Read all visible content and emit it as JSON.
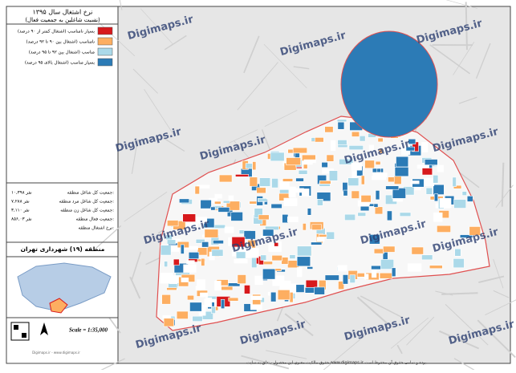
{
  "header": {
    "title": "نرخ اشتغال سال ۱۳۹۵",
    "subtitle": "(نسبت شاغلین به جمعیت فعال)"
  },
  "legend": [
    {
      "label": "بسیار نامناسب (اشتغال کمتر از ۹۰ درصد)",
      "color": "#d7191c"
    },
    {
      "label": "نامناسب (اشتغال بین ۹۰ تا ۹۲ درصد)",
      "color": "#fdae61"
    },
    {
      "label": "مناسب (اشتغال بین ۹۲ تا ۹۵ درصد)",
      "color": "#abd9e9"
    },
    {
      "label": "بسیار مناسب (اشتغال بالای ۹۵ درصد)",
      "color": "#2c7bb6"
    }
  ],
  "stats": [
    {
      "label": "جمعیت کل شاغل منطقه:",
      "value": "۱۰,۳۹۸ نفر"
    },
    {
      "label": "جمعیت کل شاغل مرد منطقه:",
      "value": "۷,۲۸۸ نفر"
    },
    {
      "label": "جمعیت کل شاغل زن منطقه:",
      "value": "۳,۱۱۰ نفر"
    },
    {
      "label": "جمعیت فعال منطقه:",
      "value": "۸۵۶,۰۳ نفر"
    },
    {
      "label": "نرخ اشتغال منطقه:",
      "value": ""
    }
  ],
  "district": "منطقه (۱۹) شهرداری تهران",
  "scale": "Scale = 1:35,000",
  "watermark": "Digimaps.ir",
  "credit": "Digimaps.ir - www.digimaps.ir",
  "footer": "حقوق مالکیت معنوی این محصول متعلق به سایت www.digimaps.ir بوده و تمامی حقوق آن محفوظ است."
}
